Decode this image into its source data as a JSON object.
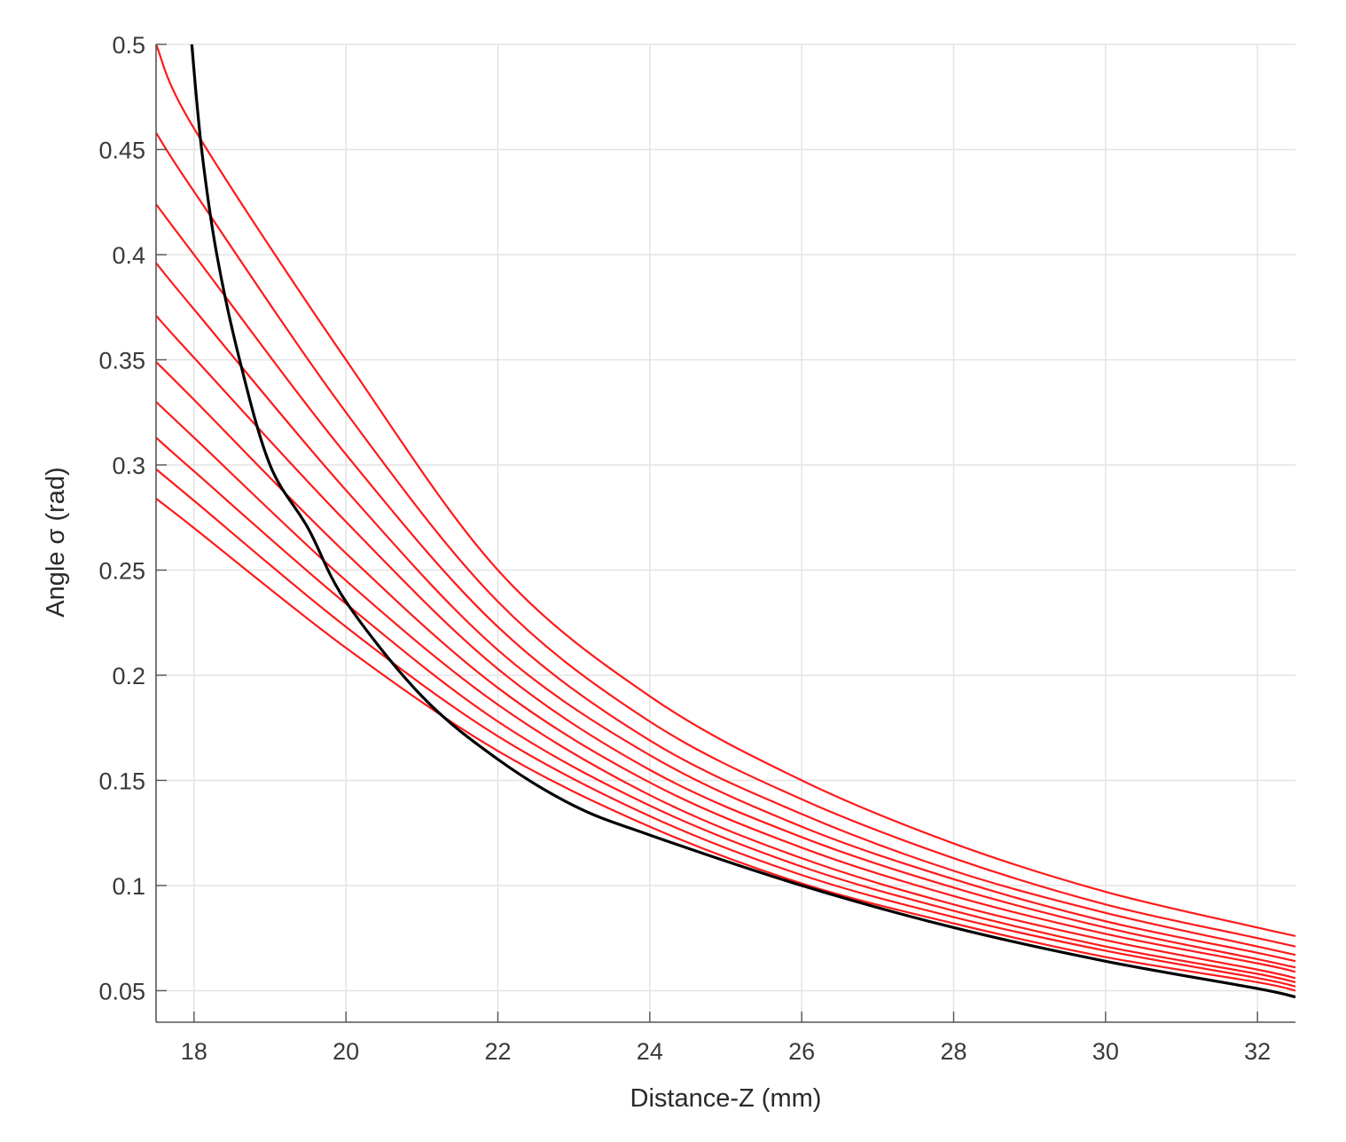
{
  "chart_data": {
    "type": "line",
    "title": "",
    "xlabel": "Distance-Z (mm)",
    "ylabel": "Angle σ (rad)",
    "xlim": [
      17.5,
      32.5
    ],
    "ylim": [
      0.035,
      0.5
    ],
    "xticks": [
      18,
      20,
      22,
      24,
      26,
      28,
      30,
      32
    ],
    "yticks": [
      0.05,
      0.1,
      0.15,
      0.2,
      0.25,
      0.3,
      0.35,
      0.4,
      0.45,
      0.5
    ],
    "xtick_labels": [
      "18",
      "20",
      "22",
      "24",
      "26",
      "28",
      "30",
      "32"
    ],
    "ytick_labels": [
      "0.05",
      "0.1",
      "0.15",
      "0.2",
      "0.25",
      "0.3",
      "0.35",
      "0.4",
      "0.45",
      "0.5"
    ],
    "grid": true,
    "legend": "none",
    "colors": {
      "red_series": "#ff1a1a",
      "black_series": "#000000"
    },
    "series": [
      {
        "color": "#ff1a1a",
        "x": [
          17.5,
          18,
          20,
          22,
          24,
          26,
          28,
          30,
          32,
          32.5
        ],
        "y": [
          0.5,
          0.46,
          0.35,
          0.25,
          0.19,
          0.15,
          0.12,
          0.097,
          0.08,
          0.076
        ]
      },
      {
        "color": "#ff1a1a",
        "x": [
          17.5,
          18,
          20,
          22,
          24,
          26,
          28,
          30,
          32,
          32.5
        ],
        "y": [
          0.458,
          0.43,
          0.325,
          0.235,
          0.178,
          0.141,
          0.113,
          0.091,
          0.075,
          0.071
        ]
      },
      {
        "color": "#ff1a1a",
        "x": [
          17.5,
          18,
          20,
          22,
          24,
          26,
          28,
          30,
          32,
          32.5
        ],
        "y": [
          0.424,
          0.4,
          0.305,
          0.223,
          0.169,
          0.134,
          0.107,
          0.087,
          0.071,
          0.067
        ]
      },
      {
        "color": "#ff1a1a",
        "x": [
          17.5,
          18,
          20,
          22,
          24,
          26,
          28,
          30,
          32,
          32.5
        ],
        "y": [
          0.396,
          0.374,
          0.288,
          0.212,
          0.162,
          0.128,
          0.103,
          0.083,
          0.068,
          0.064
        ]
      },
      {
        "color": "#ff1a1a",
        "x": [
          17.5,
          18,
          20,
          22,
          24,
          26,
          28,
          30,
          32,
          32.5
        ],
        "y": [
          0.371,
          0.351,
          0.273,
          0.203,
          0.155,
          0.123,
          0.099,
          0.08,
          0.065,
          0.061
        ]
      },
      {
        "color": "#ff1a1a",
        "x": [
          17.5,
          18,
          20,
          22,
          24,
          26,
          28,
          30,
          32,
          32.5
        ],
        "y": [
          0.349,
          0.331,
          0.258,
          0.194,
          0.149,
          0.118,
          0.095,
          0.077,
          0.063,
          0.059
        ]
      },
      {
        "color": "#ff1a1a",
        "x": [
          17.5,
          18,
          20,
          22,
          24,
          26,
          28,
          30,
          32,
          32.5
        ],
        "y": [
          0.33,
          0.313,
          0.245,
          0.186,
          0.143,
          0.113,
          0.091,
          0.074,
          0.06,
          0.056
        ]
      },
      {
        "color": "#ff1a1a",
        "x": [
          17.5,
          18,
          20,
          22,
          24,
          26,
          28,
          30,
          32,
          32.5
        ],
        "y": [
          0.313,
          0.297,
          0.234,
          0.178,
          0.138,
          0.109,
          0.088,
          0.071,
          0.058,
          0.054
        ]
      },
      {
        "color": "#ff1a1a",
        "x": [
          17.5,
          18,
          20,
          22,
          24,
          26,
          28,
          30,
          32,
          32.5
        ],
        "y": [
          0.298,
          0.283,
          0.223,
          0.171,
          0.133,
          0.105,
          0.085,
          0.069,
          0.056,
          0.052
        ]
      },
      {
        "color": "#ff1a1a",
        "x": [
          17.5,
          18,
          20,
          22,
          24,
          26,
          28,
          30,
          32,
          32.5
        ],
        "y": [
          0.284,
          0.27,
          0.213,
          0.164,
          0.128,
          0.101,
          0.082,
          0.066,
          0.054,
          0.05
        ]
      },
      {
        "color": "#000000",
        "x": [
          17.97,
          18.1,
          18.3,
          18.6,
          19.0,
          19.5,
          20,
          21,
          22,
          23,
          24,
          26,
          28,
          30,
          32,
          32.5
        ],
        "y": [
          0.5,
          0.45,
          0.4,
          0.35,
          0.3,
          0.27,
          0.235,
          0.19,
          0.16,
          0.138,
          0.124,
          0.1,
          0.08,
          0.064,
          0.051,
          0.047
        ]
      }
    ]
  }
}
